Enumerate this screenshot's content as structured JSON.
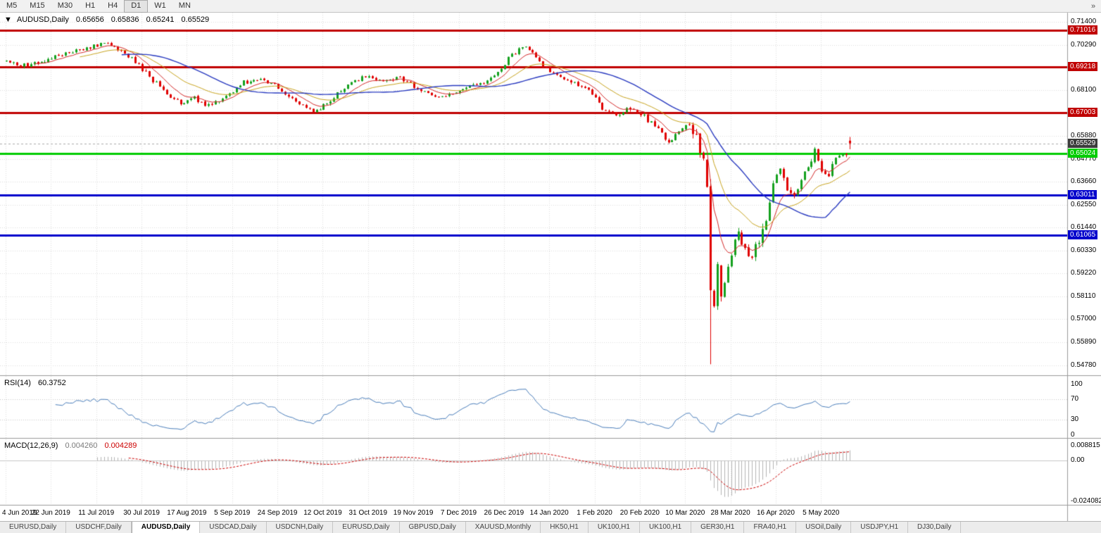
{
  "colors": {
    "background": "#ffffff",
    "grid": "#dcdcdc",
    "candle_up": "#14a11e",
    "candle_down": "#e00000",
    "ma_fast": "#d42a2a",
    "ma_mid": "#c8a41e",
    "ma_slow": "#2a3bc0",
    "rsi_line": "#4a7ebb",
    "rsi_level": "#c8c8c8",
    "macd_hist": "#b4b4b4",
    "macd_signal": "#cc0000",
    "current_price_line": "#aaaaaa",
    "panel_border": "#9a9a9a"
  },
  "toolbar": {
    "timeframes": [
      {
        "label": "M5"
      },
      {
        "label": "M15"
      },
      {
        "label": "M30"
      },
      {
        "label": "H1"
      },
      {
        "label": "H4"
      },
      {
        "label": "D1"
      },
      {
        "label": "W1"
      },
      {
        "label": "MN"
      }
    ],
    "active": "D1",
    "overflow_icon": "»"
  },
  "chart_header": {
    "collapse_icon": "▼",
    "symbol": "AUDUSD,Daily",
    "open": "0.65656",
    "high": "0.65836",
    "low": "0.65241",
    "close": "0.65529"
  },
  "price_axis": {
    "ticks": [
      {
        "label": "0.71400",
        "value": 0.714
      },
      {
        "label": "0.70290",
        "value": 0.7029
      },
      {
        "label": "0.68100",
        "value": 0.681
      },
      {
        "label": "0.65880",
        "value": 0.6588
      },
      {
        "label": "0.64770",
        "value": 0.6477
      },
      {
        "label": "0.63660",
        "value": 0.6366
      },
      {
        "label": "0.62550",
        "value": 0.6255
      },
      {
        "label": "0.61440",
        "value": 0.6144
      },
      {
        "label": "0.60330",
        "value": 0.6033
      },
      {
        "label": "0.59220",
        "value": 0.5922
      },
      {
        "label": "0.58110",
        "value": 0.5811
      },
      {
        "label": "0.57000",
        "value": 0.57
      },
      {
        "label": "0.55890",
        "value": 0.5589
      },
      {
        "label": "0.54780",
        "value": 0.5478
      }
    ]
  },
  "rsi": {
    "label": "RSI(14)",
    "value": "60.3752",
    "period": 14,
    "levels": [
      70,
      30
    ],
    "axis": [
      {
        "label": "100",
        "value": 100
      },
      {
        "label": "70",
        "value": 70
      },
      {
        "label": "30",
        "value": 30
      },
      {
        "label": "0",
        "value": 0
      }
    ]
  },
  "macd": {
    "label": "MACD(12,26,9)",
    "main_value": "0.004260",
    "signal_value": "0.004289",
    "fast": 12,
    "slow": 26,
    "signal": 9,
    "axis": [
      {
        "label": "0.008815",
        "value": 0.008815
      },
      {
        "label": "0.00",
        "value": 0
      },
      {
        "label": "-0.024082",
        "value": -0.024082
      }
    ]
  },
  "time_axis": {
    "labels": [
      {
        "label": "4 Jun 2019",
        "day": 0
      },
      {
        "label": "22 Jun 2019",
        "day": 13
      },
      {
        "label": "11 Jul 2019",
        "day": 26
      },
      {
        "label": "30 Jul 2019",
        "day": 39
      },
      {
        "label": "17 Aug 2019",
        "day": 52
      },
      {
        "label": "5 Sep 2019",
        "day": 65
      },
      {
        "label": "24 Sep 2019",
        "day": 78
      },
      {
        "label": "12 Oct 2019",
        "day": 91
      },
      {
        "label": "31 Oct 2019",
        "day": 104
      },
      {
        "label": "19 Nov 2019",
        "day": 117
      },
      {
        "label": "7 Dec 2019",
        "day": 130
      },
      {
        "label": "26 Dec 2019",
        "day": 143
      },
      {
        "label": "14 Jan 2020",
        "day": 156
      },
      {
        "label": "1 Feb 2020",
        "day": 169
      },
      {
        "label": "20 Feb 2020",
        "day": 182
      },
      {
        "label": "10 Mar 2020",
        "day": 195
      },
      {
        "label": "28 Mar 2020",
        "day": 208
      },
      {
        "label": "16 Apr 2020",
        "day": 221
      },
      {
        "label": "5 May 2020",
        "day": 234
      }
    ]
  },
  "tabs": [
    {
      "label": "EURUSD,Daily"
    },
    {
      "label": "USDCHF,Daily"
    },
    {
      "label": "AUDUSD,Daily",
      "active": true
    },
    {
      "label": "USDCAD,Daily"
    },
    {
      "label": "USDCNH,Daily"
    },
    {
      "label": "EURUSD,Daily"
    },
    {
      "label": "GBPUSD,Daily"
    },
    {
      "label": "XAUUSD,Monthly"
    },
    {
      "label": "HK50,H1"
    },
    {
      "label": "UK100,H1"
    },
    {
      "label": "UK100,H1"
    },
    {
      "label": "GER30,H1"
    },
    {
      "label": "FRA40,H1"
    },
    {
      "label": "USOil,Daily"
    },
    {
      "label": "USDJPY,H1"
    },
    {
      "label": "DJ30,Daily"
    }
  ],
  "chart_data": {
    "type": "candlestick",
    "symbol": "AUDUSD",
    "timeframe": "Daily",
    "title": "AUDUSD,Daily 0.65656 0.65836 0.65241 0.65529",
    "visible_range": {
      "price_min": 0.5432,
      "price_max": 0.7186,
      "days": 243
    },
    "current_price": {
      "label": "0.65529",
      "value": 0.65529,
      "badge_color": "#3c3c3c"
    },
    "h_lines": [
      {
        "label": "0.71016",
        "value": 0.71016,
        "color": "#c00000",
        "width": 3,
        "kind": "resistance-1"
      },
      {
        "label": "0.69218",
        "value": 0.69218,
        "color": "#c00000",
        "width": 3,
        "kind": "resistance-2"
      },
      {
        "label": "0.67003",
        "value": 0.67003,
        "color": "#c00000",
        "width": 3,
        "kind": "resistance-3"
      },
      {
        "label": "0.65024",
        "value": 0.65024,
        "color": "#00cc00",
        "width": 3,
        "kind": "support-1"
      },
      {
        "label": "0.63011",
        "value": 0.63011,
        "color": "#0000cc",
        "width": 3,
        "kind": "support-2"
      },
      {
        "label": "0.61065",
        "value": 0.61065,
        "color": "#0000cc",
        "width": 3,
        "kind": "support-3"
      }
    ],
    "overlays": [
      {
        "name": "MA-fast",
        "type": "ema",
        "period": 8,
        "color": "#d42a2a"
      },
      {
        "name": "MA-mid",
        "type": "ema",
        "period": 21,
        "color": "#c8a41e"
      },
      {
        "name": "MA-slow",
        "type": "sma",
        "period": 34,
        "color": "#2a3bc0"
      }
    ],
    "indicators": [
      {
        "name": "RSI",
        "period": 14,
        "last": 60.3752
      },
      {
        "name": "MACD",
        "fast": 12,
        "slow": 26,
        "signal": 9,
        "last_main": 0.00426,
        "last_signal": 0.004289
      }
    ],
    "waypoints": [
      [
        0,
        0.6952
      ],
      [
        6,
        0.6925
      ],
      [
        12,
        0.6962
      ],
      [
        20,
        0.7
      ],
      [
        29,
        0.704
      ],
      [
        34,
        0.6988
      ],
      [
        38,
        0.693
      ],
      [
        42,
        0.686
      ],
      [
        46,
        0.6788
      ],
      [
        50,
        0.6745
      ],
      [
        54,
        0.6768
      ],
      [
        58,
        0.6735
      ],
      [
        63,
        0.6778
      ],
      [
        68,
        0.6852
      ],
      [
        74,
        0.6862
      ],
      [
        79,
        0.6806
      ],
      [
        84,
        0.6742
      ],
      [
        88,
        0.6706
      ],
      [
        93,
        0.6752
      ],
      [
        98,
        0.684
      ],
      [
        103,
        0.6878
      ],
      [
        108,
        0.6852
      ],
      [
        113,
        0.6878
      ],
      [
        118,
        0.6816
      ],
      [
        123,
        0.6778
      ],
      [
        128,
        0.6792
      ],
      [
        133,
        0.6838
      ],
      [
        137,
        0.6852
      ],
      [
        141,
        0.689
      ],
      [
        145,
        0.6988
      ],
      [
        148,
        0.7028
      ],
      [
        151,
        0.6996
      ],
      [
        155,
        0.6916
      ],
      [
        159,
        0.6872
      ],
      [
        163,
        0.6848
      ],
      [
        167,
        0.6812
      ],
      [
        171,
        0.6722
      ],
      [
        175,
        0.6688
      ],
      [
        179,
        0.6722
      ],
      [
        183,
        0.6686
      ],
      [
        187,
        0.6625
      ],
      [
        190,
        0.6552
      ],
      [
        193,
        0.662
      ],
      [
        196,
        0.6648
      ],
      [
        198,
        0.6588
      ],
      [
        200,
        0.648
      ],
      [
        201,
        0.633
      ],
      [
        202,
        0.582
      ],
      [
        203,
        0.5762
      ],
      [
        204,
        0.594
      ],
      [
        205,
        0.5802
      ],
      [
        206,
        0.5906
      ],
      [
        208,
        0.601
      ],
      [
        210,
        0.6136
      ],
      [
        212,
        0.6042
      ],
      [
        214,
        0.5986
      ],
      [
        216,
        0.6098
      ],
      [
        218,
        0.618
      ],
      [
        220,
        0.6352
      ],
      [
        222,
        0.6438
      ],
      [
        224,
        0.6326
      ],
      [
        226,
        0.6286
      ],
      [
        228,
        0.638
      ],
      [
        230,
        0.6426
      ],
      [
        232,
        0.6506
      ],
      [
        234,
        0.6418
      ],
      [
        236,
        0.6412
      ],
      [
        238,
        0.6478
      ],
      [
        240,
        0.6526
      ],
      [
        241,
        0.6492
      ],
      [
        242,
        0.6553
      ]
    ],
    "special_candles": {
      "last": {
        "open": 0.65656,
        "high": 0.65836,
        "low": 0.65241,
        "close": 0.65529
      },
      "crash_day": 202,
      "crash_low": 0.5482
    }
  }
}
